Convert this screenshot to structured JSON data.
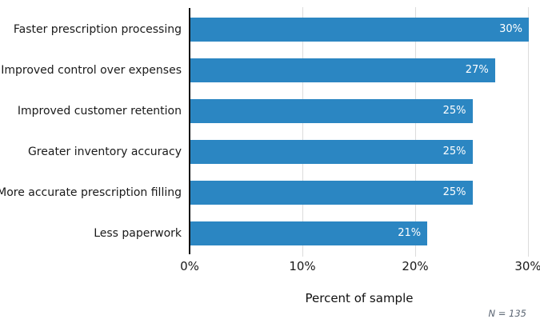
{
  "chart_data": {
    "type": "bar",
    "orientation": "horizontal",
    "categories": [
      "Faster prescription processing",
      "Improved control over expenses",
      "Improved customer retention",
      "Greater inventory accuracy",
      "More accurate prescription filling",
      "Less paperwork"
    ],
    "values": [
      30,
      27,
      25,
      25,
      25,
      21
    ],
    "value_labels": [
      "30%",
      "27%",
      "25%",
      "25%",
      "25%",
      "21%"
    ],
    "xlabel": "Percent of sample",
    "x_ticks": [
      {
        "value": 0,
        "label": "0%"
      },
      {
        "value": 10,
        "label": "10%"
      },
      {
        "value": 20,
        "label": "20%"
      },
      {
        "value": 30,
        "label": "30%"
      }
    ],
    "xlim": [
      0,
      31
    ],
    "grid": "vertical-light-gray",
    "legend": "none",
    "note": "N = 135",
    "colors": {
      "bar": "#2b86c2",
      "value_label": "#ffffff",
      "gridline": "#dcdcdc",
      "axis": "#111111",
      "text": "#1a1a1a",
      "note": "#5a6472"
    }
  }
}
